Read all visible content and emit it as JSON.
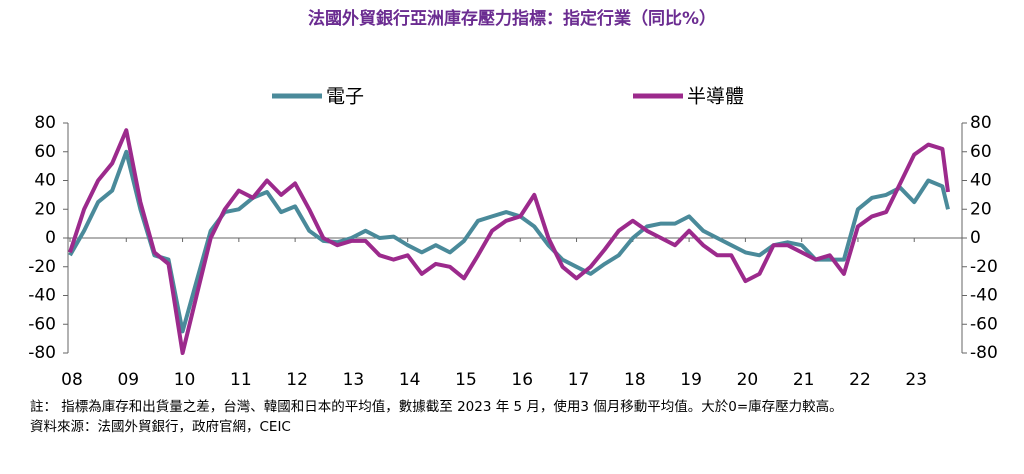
{
  "chart_data": {
    "type": "line",
    "title": "法國外貿銀行亞洲庫存壓力指標：指定行業（同比%）",
    "notes": [
      "註：  指標為庫存和出貨量之差，台灣、韓國和日本的平均值，數據截至 2023 年 5 月，使用3 個月移動平均值。大於0=庫存壓力較高。",
      "資料來源：法國外貿銀行，政府官網，CEIC"
    ],
    "x": [
      8,
      8.25,
      8.5,
      8.75,
      9,
      9.25,
      9.5,
      9.75,
      10,
      10.25,
      10.5,
      10.75,
      11,
      11.25,
      11.5,
      11.75,
      12,
      12.25,
      12.5,
      12.75,
      13,
      13.25,
      13.5,
      13.75,
      14,
      14.25,
      14.5,
      14.75,
      15,
      15.25,
      15.5,
      15.75,
      16,
      16.25,
      16.5,
      16.75,
      17,
      17.25,
      17.5,
      17.75,
      18,
      18.25,
      18.5,
      18.75,
      19,
      19.25,
      19.5,
      19.75,
      20,
      20.25,
      20.5,
      20.75,
      21,
      21.25,
      21.5,
      21.75,
      22,
      22.25,
      22.5,
      22.75,
      23,
      23.25,
      23.5,
      23.6
    ],
    "series": [
      {
        "name": "電子",
        "color": "#4a8a9a",
        "values": [
          -12,
          5,
          25,
          33,
          60,
          20,
          -12,
          -15,
          -65,
          -30,
          5,
          18,
          20,
          28,
          32,
          18,
          22,
          5,
          -2,
          -3,
          0,
          5,
          0,
          1,
          -5,
          -10,
          -5,
          -10,
          -2,
          12,
          15,
          18,
          15,
          8,
          -5,
          -15,
          -20,
          -25,
          -18,
          -12,
          0,
          8,
          10,
          10,
          15,
          5,
          0,
          -5,
          -10,
          -12,
          -5,
          -3,
          -5,
          -15,
          -15,
          -15,
          20,
          28,
          30,
          35,
          25,
          40,
          36,
          20
        ]
      },
      {
        "name": "半導體",
        "color": "#9c2a8c",
        "values": [
          -10,
          20,
          40,
          52,
          75,
          25,
          -10,
          -18,
          -80,
          -40,
          0,
          20,
          33,
          28,
          40,
          30,
          38,
          20,
          0,
          -5,
          -2,
          -2,
          -12,
          -15,
          -12,
          -25,
          -18,
          -20,
          -28,
          -12,
          5,
          12,
          15,
          30,
          0,
          -20,
          -28,
          -20,
          -8,
          5,
          12,
          5,
          0,
          -5,
          5,
          -5,
          -12,
          -12,
          -30,
          -25,
          -5,
          -5,
          -10,
          -15,
          -12,
          -25,
          8,
          15,
          18,
          38,
          58,
          65,
          62,
          32
        ]
      }
    ],
    "xlim": [
      8,
      23.6
    ],
    "xticks": [
      {
        "value": 8,
        "label": "08"
      },
      {
        "value": 9,
        "label": "09"
      },
      10,
      11,
      12,
      13,
      14,
      15,
      16,
      17,
      18,
      19,
      20,
      21,
      22,
      23
    ],
    "ylim": [
      -80,
      80
    ],
    "yticks": [
      -80,
      -60,
      -40,
      -20,
      0,
      20,
      40,
      60,
      80
    ],
    "y2lim": [
      -80,
      80
    ],
    "y2ticks": [
      -80,
      -60,
      -40,
      -20,
      0,
      20,
      40,
      60,
      80
    ],
    "legend": "top"
  }
}
